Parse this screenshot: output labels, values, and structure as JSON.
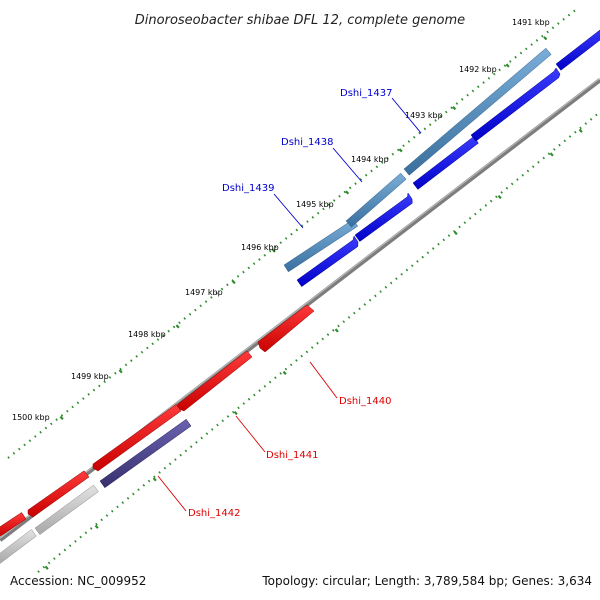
{
  "title": "Dinoroseobacter shibae DFL 12, complete genome",
  "footer": {
    "accession": "Accession: NC_009952",
    "stats": "Topology: circular; Length: 3,789,584 bp; Genes: 3,634"
  },
  "ruler_labels": [
    "1491 kbp",
    "1492 kbp",
    "1493 kbp",
    "1494 kbp",
    "1495 kbp",
    "1496 kbp",
    "1497 kbp",
    "1498 kbp",
    "1499 kbp",
    "1500 kbp"
  ],
  "genes": [
    {
      "id": "Dshi_1437",
      "strand": "forward",
      "color": "#0000cc"
    },
    {
      "id": "Dshi_1438",
      "strand": "forward",
      "color": "#0000cc"
    },
    {
      "id": "Dshi_1439",
      "strand": "forward",
      "color": "#0000cc"
    },
    {
      "id": "Dshi_1440",
      "strand": "reverse",
      "color": "#dd0000"
    },
    {
      "id": "Dshi_1441",
      "strand": "reverse",
      "color": "#dd0000"
    },
    {
      "id": "Dshi_1442",
      "strand": "reverse",
      "color": "#dd0000"
    }
  ],
  "colors": {
    "forward_cds": "#0000ee",
    "reverse_cds": "#ee0000",
    "forward_orf": "#4a86c0",
    "reverse_orf": "#4a3f8f",
    "other_feature": "#c8c8c8",
    "backbone": "#808080",
    "ruler": "#2e8b2e"
  }
}
